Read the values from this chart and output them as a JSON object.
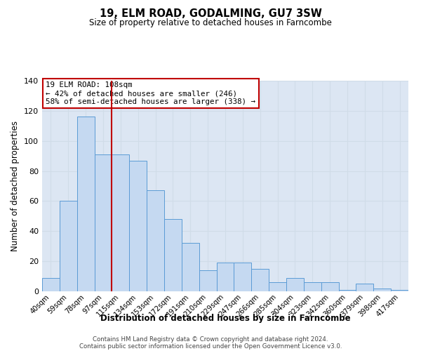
{
  "title": "19, ELM ROAD, GODALMING, GU7 3SW",
  "subtitle": "Size of property relative to detached houses in Farncombe",
  "xlabel": "Distribution of detached houses by size in Farncombe",
  "ylabel": "Number of detached properties",
  "bar_labels": [
    "40sqm",
    "59sqm",
    "78sqm",
    "97sqm",
    "115sqm",
    "134sqm",
    "153sqm",
    "172sqm",
    "191sqm",
    "210sqm",
    "229sqm",
    "247sqm",
    "266sqm",
    "285sqm",
    "304sqm",
    "323sqm",
    "342sqm",
    "360sqm",
    "379sqm",
    "398sqm",
    "417sqm"
  ],
  "bar_values": [
    9,
    60,
    116,
    91,
    91,
    87,
    67,
    48,
    32,
    14,
    19,
    19,
    15,
    6,
    9,
    6,
    6,
    1,
    5,
    2,
    1
  ],
  "bar_color": "#c5d9f1",
  "bar_edge_color": "#5b9bd5",
  "vline_x": 3.5,
  "vline_color": "#c00000",
  "annotation_text": "19 ELM ROAD: 108sqm\n← 42% of detached houses are smaller (246)\n58% of semi-detached houses are larger (338) →",
  "annotation_box_color": "#ffffff",
  "annotation_box_edge_color": "#c00000",
  "ylim": [
    0,
    140
  ],
  "yticks": [
    0,
    20,
    40,
    60,
    80,
    100,
    120,
    140
  ],
  "footer_line1": "Contains HM Land Registry data © Crown copyright and database right 2024.",
  "footer_line2": "Contains public sector information licensed under the Open Government Licence v3.0.",
  "grid_color": "#d0dce8",
  "bg_color": "#dce6f3"
}
